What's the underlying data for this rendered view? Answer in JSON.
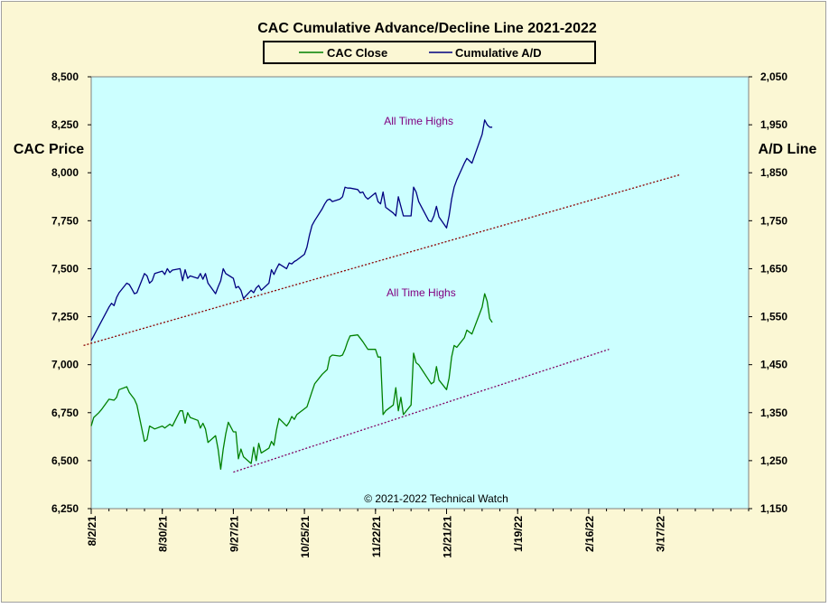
{
  "chart_data": {
    "type": "line",
    "title": "CAC Cumulative  Advance/Decline Line 2021-2022",
    "ylabel_left": "CAC Price",
    "ylabel_right": "A/D Line",
    "copyright": "© 2021-2022  Technical Watch",
    "ylim_left": [
      6250,
      8500
    ],
    "ylim_right": [
      1150,
      2050
    ],
    "yticks_left": [
      "6,250",
      "6,500",
      "6,750",
      "7,000",
      "7,250",
      "7,500",
      "7,750",
      "8,000",
      "8,250",
      "8,500"
    ],
    "yticks_right": [
      "1,150",
      "1,250",
      "1,350",
      "1,450",
      "1,550",
      "1,650",
      "1,750",
      "1,850",
      "1,950",
      "2,050"
    ],
    "xticks": [
      "8/2/21",
      "8/30/21",
      "9/27/21",
      "10/25/21",
      "11/22/21",
      "12/21/21",
      "1/19/22",
      "2/16/22",
      "3/17/22"
    ],
    "xlim": [
      "2021-08-02",
      "2022-04-18"
    ],
    "legend": {
      "placement": "top-center"
    },
    "series": [
      {
        "name": "CAC Close",
        "color": "#008000",
        "axis": "left",
        "values": [
          [
            "2021-08-02",
            6680
          ],
          [
            "2021-08-03",
            6725
          ],
          [
            "2021-08-05",
            6750
          ],
          [
            "2021-08-06",
            6765
          ],
          [
            "2021-08-09",
            6820
          ],
          [
            "2021-08-11",
            6815
          ],
          [
            "2021-08-12",
            6830
          ],
          [
            "2021-08-13",
            6870
          ],
          [
            "2021-08-16",
            6885
          ],
          [
            "2021-08-17",
            6855
          ],
          [
            "2021-08-19",
            6820
          ],
          [
            "2021-08-20",
            6790
          ],
          [
            "2021-08-23",
            6600
          ],
          [
            "2021-08-24",
            6610
          ],
          [
            "2021-08-25",
            6680
          ],
          [
            "2021-08-27",
            6665
          ],
          [
            "2021-08-30",
            6680
          ],
          [
            "2021-08-31",
            6670
          ],
          [
            "2021-09-01",
            6680
          ],
          [
            "2021-09-02",
            6690
          ],
          [
            "2021-09-03",
            6680
          ],
          [
            "2021-09-06",
            6760
          ],
          [
            "2021-09-07",
            6760
          ],
          [
            "2021-09-08",
            6695
          ],
          [
            "2021-09-09",
            6750
          ],
          [
            "2021-09-10",
            6725
          ],
          [
            "2021-09-13",
            6710
          ],
          [
            "2021-09-14",
            6670
          ],
          [
            "2021-09-15",
            6695
          ],
          [
            "2021-09-16",
            6665
          ],
          [
            "2021-09-17",
            6595
          ],
          [
            "2021-09-20",
            6630
          ],
          [
            "2021-09-21",
            6560
          ],
          [
            "2021-09-22",
            6455
          ],
          [
            "2021-09-23",
            6560
          ],
          [
            "2021-09-24",
            6640
          ],
          [
            "2021-09-25",
            6700
          ],
          [
            "2021-09-27",
            6650
          ],
          [
            "2021-09-28",
            6650
          ],
          [
            "2021-09-29",
            6510
          ],
          [
            "2021-09-30",
            6560
          ],
          [
            "2021-10-01",
            6520
          ],
          [
            "2021-10-04",
            6485
          ],
          [
            "2021-10-05",
            6570
          ],
          [
            "2021-10-06",
            6500
          ],
          [
            "2021-10-07",
            6590
          ],
          [
            "2021-10-08",
            6540
          ],
          [
            "2021-10-11",
            6565
          ],
          [
            "2021-10-12",
            6600
          ],
          [
            "2021-10-13",
            6580
          ],
          [
            "2021-10-14",
            6660
          ],
          [
            "2021-10-15",
            6720
          ],
          [
            "2021-10-18",
            6680
          ],
          [
            "2021-10-19",
            6700
          ],
          [
            "2021-10-20",
            6730
          ],
          [
            "2021-10-21",
            6715
          ],
          [
            "2021-10-22",
            6740
          ],
          [
            "2021-10-25",
            6770
          ],
          [
            "2021-10-26",
            6780
          ],
          [
            "2021-10-27",
            6820
          ],
          [
            "2021-10-28",
            6860
          ],
          [
            "2021-10-29",
            6900
          ],
          [
            "2021-11-01",
            6950
          ],
          [
            "2021-11-03",
            6975
          ],
          [
            "2021-11-04",
            7040
          ],
          [
            "2021-11-05",
            7050
          ],
          [
            "2021-11-08",
            7045
          ],
          [
            "2021-11-09",
            7050
          ],
          [
            "2021-11-10",
            7080
          ],
          [
            "2021-11-11",
            7120
          ],
          [
            "2021-11-12",
            7150
          ],
          [
            "2021-11-15",
            7155
          ],
          [
            "2021-11-17",
            7120
          ],
          [
            "2021-11-19",
            7080
          ],
          [
            "2021-11-22",
            7080
          ],
          [
            "2021-11-23",
            7040
          ],
          [
            "2021-11-24",
            7040
          ],
          [
            "2021-11-25",
            6740
          ],
          [
            "2021-11-26",
            6760
          ],
          [
            "2021-11-29",
            6790
          ],
          [
            "2021-11-30",
            6880
          ],
          [
            "2021-12-01",
            6760
          ],
          [
            "2021-12-02",
            6830
          ],
          [
            "2021-12-03",
            6740
          ],
          [
            "2021-12-06",
            6790
          ],
          [
            "2021-12-07",
            7060
          ],
          [
            "2021-12-08",
            7010
          ],
          [
            "2021-12-09",
            7000
          ],
          [
            "2021-12-10",
            6980
          ],
          [
            "2021-12-13",
            6920
          ],
          [
            "2021-12-14",
            6900
          ],
          [
            "2021-12-15",
            6910
          ],
          [
            "2021-12-16",
            6990
          ],
          [
            "2021-12-17",
            6920
          ],
          [
            "2021-12-20",
            6870
          ],
          [
            "2021-12-21",
            6930
          ],
          [
            "2021-12-22",
            7040
          ],
          [
            "2021-12-23",
            7100
          ],
          [
            "2021-12-24",
            7090
          ],
          [
            "2021-12-27",
            7140
          ],
          [
            "2021-12-28",
            7180
          ],
          [
            "2021-12-29",
            7170
          ],
          [
            "2021-12-30",
            7160
          ],
          [
            "2022-01-03",
            7300
          ],
          [
            "2022-01-04",
            7370
          ],
          [
            "2022-01-05",
            7330
          ],
          [
            "2022-01-06",
            7240
          ],
          [
            "2022-01-07",
            7220
          ]
        ]
      },
      {
        "name": "Cumulative A/D",
        "color": "#000080",
        "axis": "right",
        "values": [
          [
            "2021-08-02",
            1500
          ],
          [
            "2021-08-03",
            1510
          ],
          [
            "2021-08-04",
            1520
          ],
          [
            "2021-08-05",
            1530
          ],
          [
            "2021-08-06",
            1540
          ],
          [
            "2021-08-09",
            1570
          ],
          [
            "2021-08-10",
            1578
          ],
          [
            "2021-08-11",
            1573
          ],
          [
            "2021-08-12",
            1590
          ],
          [
            "2021-08-13",
            1600
          ],
          [
            "2021-08-16",
            1620
          ],
          [
            "2021-08-17",
            1617
          ],
          [
            "2021-08-18",
            1608
          ],
          [
            "2021-08-19",
            1598
          ],
          [
            "2021-08-20",
            1600
          ],
          [
            "2021-08-23",
            1640
          ],
          [
            "2021-08-24",
            1635
          ],
          [
            "2021-08-25",
            1620
          ],
          [
            "2021-08-26",
            1625
          ],
          [
            "2021-08-27",
            1640
          ],
          [
            "2021-08-30",
            1645
          ],
          [
            "2021-08-31",
            1638
          ],
          [
            "2021-09-01",
            1650
          ],
          [
            "2021-09-02",
            1642
          ],
          [
            "2021-09-03",
            1647
          ],
          [
            "2021-09-06",
            1650
          ],
          [
            "2021-09-07",
            1625
          ],
          [
            "2021-09-08",
            1648
          ],
          [
            "2021-09-09",
            1630
          ],
          [
            "2021-09-10",
            1635
          ],
          [
            "2021-09-13",
            1630
          ],
          [
            "2021-09-14",
            1640
          ],
          [
            "2021-09-15",
            1628
          ],
          [
            "2021-09-16",
            1640
          ],
          [
            "2021-09-17",
            1620
          ],
          [
            "2021-09-20",
            1598
          ],
          [
            "2021-09-21",
            1612
          ],
          [
            "2021-09-22",
            1625
          ],
          [
            "2021-09-23",
            1650
          ],
          [
            "2021-09-24",
            1640
          ],
          [
            "2021-09-27",
            1630
          ],
          [
            "2021-09-28",
            1610
          ],
          [
            "2021-09-29",
            1613
          ],
          [
            "2021-09-30",
            1605
          ],
          [
            "2021-10-01",
            1588
          ],
          [
            "2021-10-04",
            1605
          ],
          [
            "2021-10-05",
            1600
          ],
          [
            "2021-10-06",
            1610
          ],
          [
            "2021-10-07",
            1615
          ],
          [
            "2021-10-08",
            1605
          ],
          [
            "2021-10-11",
            1620
          ],
          [
            "2021-10-12",
            1648
          ],
          [
            "2021-10-13",
            1638
          ],
          [
            "2021-10-14",
            1650
          ],
          [
            "2021-10-15",
            1660
          ],
          [
            "2021-10-18",
            1650
          ],
          [
            "2021-10-19",
            1662
          ],
          [
            "2021-10-20",
            1660
          ],
          [
            "2021-10-21",
            1665
          ],
          [
            "2021-10-22",
            1668
          ],
          [
            "2021-10-25",
            1680
          ],
          [
            "2021-10-26",
            1695
          ],
          [
            "2021-10-27",
            1720
          ],
          [
            "2021-10-28",
            1740
          ],
          [
            "2021-10-29",
            1750
          ],
          [
            "2021-11-01",
            1775
          ],
          [
            "2021-11-02",
            1785
          ],
          [
            "2021-11-03",
            1793
          ],
          [
            "2021-11-04",
            1795
          ],
          [
            "2021-11-05",
            1790
          ],
          [
            "2021-11-08",
            1795
          ],
          [
            "2021-11-09",
            1800
          ],
          [
            "2021-11-10",
            1820
          ],
          [
            "2021-11-11",
            1818
          ],
          [
            "2021-11-12",
            1818
          ],
          [
            "2021-11-15",
            1815
          ],
          [
            "2021-11-16",
            1808
          ],
          [
            "2021-11-17",
            1810
          ],
          [
            "2021-11-18",
            1800
          ],
          [
            "2021-11-19",
            1795
          ],
          [
            "2021-11-22",
            1808
          ],
          [
            "2021-11-23",
            1790
          ],
          [
            "2021-11-24",
            1785
          ],
          [
            "2021-11-25",
            1810
          ],
          [
            "2021-11-26",
            1778
          ],
          [
            "2021-11-29",
            1766
          ],
          [
            "2021-11-30",
            1760
          ],
          [
            "2021-12-01",
            1800
          ],
          [
            "2021-12-02",
            1780
          ],
          [
            "2021-12-03",
            1760
          ],
          [
            "2021-12-06",
            1760
          ],
          [
            "2021-12-07",
            1820
          ],
          [
            "2021-12-08",
            1810
          ],
          [
            "2021-12-09",
            1790
          ],
          [
            "2021-12-10",
            1780
          ],
          [
            "2021-12-13",
            1750
          ],
          [
            "2021-12-14",
            1748
          ],
          [
            "2021-12-15",
            1760
          ],
          [
            "2021-12-16",
            1780
          ],
          [
            "2021-12-17",
            1758
          ],
          [
            "2021-12-20",
            1735
          ],
          [
            "2021-12-21",
            1760
          ],
          [
            "2021-12-22",
            1795
          ],
          [
            "2021-12-23",
            1820
          ],
          [
            "2021-12-24",
            1835
          ],
          [
            "2021-12-27",
            1870
          ],
          [
            "2021-12-28",
            1880
          ],
          [
            "2021-12-29",
            1875
          ],
          [
            "2021-12-30",
            1870
          ],
          [
            "2022-01-03",
            1930
          ],
          [
            "2022-01-04",
            1960
          ],
          [
            "2022-01-05",
            1950
          ],
          [
            "2022-01-06",
            1945
          ],
          [
            "2022-01-07",
            1945
          ]
        ]
      }
    ],
    "trendlines": [
      {
        "axis": "right",
        "color": "#8b0000",
        "from": [
          "2021-07-30",
          1490
        ],
        "to": [
          "2022-03-22",
          1846
        ]
      },
      {
        "axis": "left",
        "color": "#800060",
        "from": [
          "2021-09-27",
          6440
        ],
        "to": [
          "2022-02-22",
          7080
        ]
      }
    ],
    "annotations": [
      {
        "text": "All Time Highs",
        "axis": "right",
        "x": "2021-12-09",
        "y": 1950,
        "color": "#800080"
      },
      {
        "text": "All Time Highs",
        "axis": "left",
        "x": "2021-12-10",
        "y": 7355,
        "color": "#800080"
      }
    ]
  }
}
